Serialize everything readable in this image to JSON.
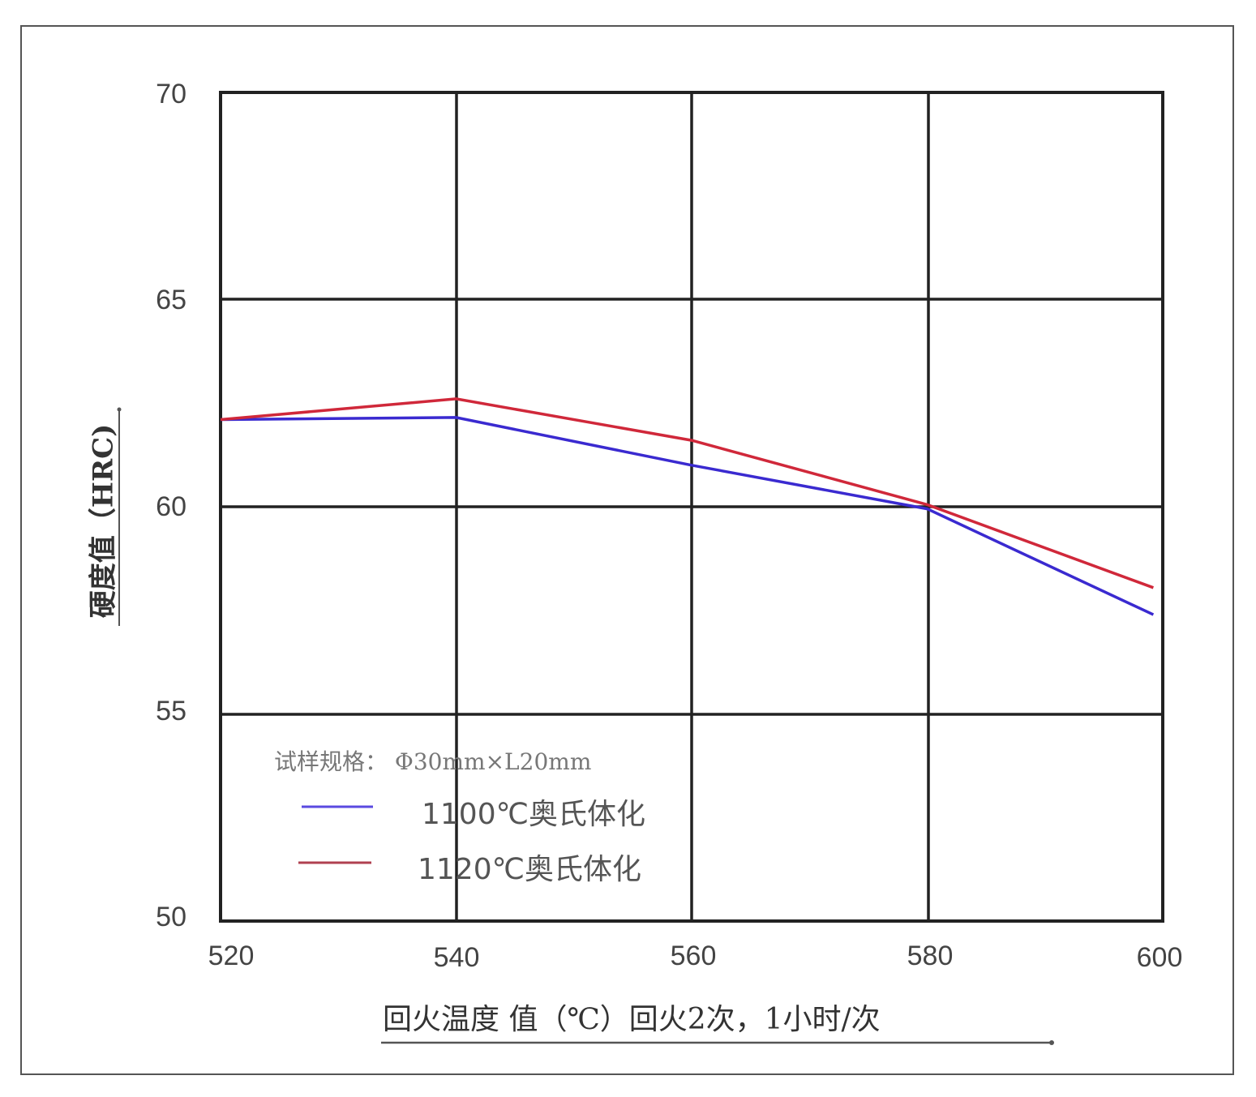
{
  "chart_data": {
    "type": "line",
    "title": "",
    "xlabel": "回火温度 值（℃）回火2次，1小时/次",
    "ylabel": "硬度值（HRC)",
    "x": [
      520,
      540,
      560,
      580,
      600
    ],
    "xticks": [
      "520",
      "540",
      "560",
      "580",
      "600"
    ],
    "yticks": [
      "50",
      "55",
      "60",
      "65",
      "70"
    ],
    "xlim": [
      520,
      600
    ],
    "ylim": [
      50,
      70
    ],
    "grid": true,
    "annotation": "试样规格： Φ30mm×L20mm",
    "legend_position": "lower-left inside plot",
    "series": [
      {
        "name": "1100℃奥氏体化",
        "color": "#3a2ad0",
        "values": [
          62.1,
          62.15,
          61.0,
          59.95,
          57.4
        ]
      },
      {
        "name": "1120℃奥氏体化",
        "color": "#d0283a",
        "values": [
          62.1,
          62.6,
          61.6,
          60.05,
          58.05
        ]
      }
    ]
  },
  "labels": {
    "y_axis": "硬度值（HRC)",
    "x_axis": "回火温度 值（℃）回火2次，1小时/次",
    "spec": "试样规格： Φ30mm×L20mm",
    "legend_1100": "1100℃奥氏体化",
    "legend_1120": "1120℃奥氏体化",
    "y70": "70",
    "y65": "65",
    "y60": "60",
    "y55": "55",
    "y50": "50",
    "x520": "520",
    "x540": "540",
    "x560": "560",
    "x580": "580",
    "x600": "600"
  }
}
